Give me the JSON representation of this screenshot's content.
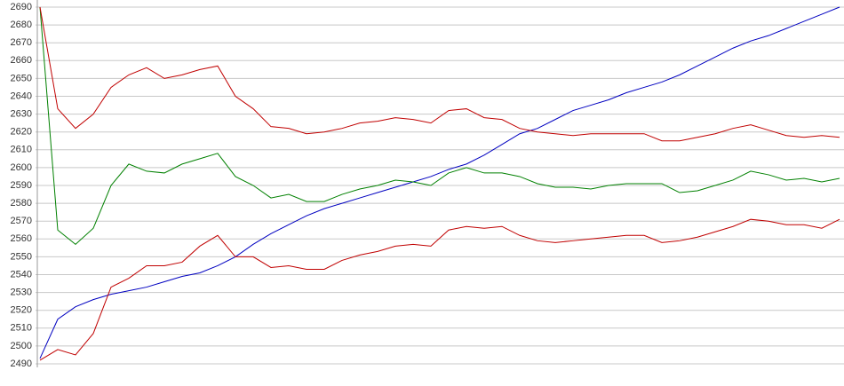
{
  "chart_data": {
    "type": "line",
    "categories": [
      null,
      null,
      null,
      null,
      null,
      null,
      null,
      null,
      null,
      null,
      null,
      null,
      null,
      null,
      null,
      null,
      null,
      null,
      null,
      null,
      null,
      null,
      null,
      null,
      null,
      null,
      null,
      null,
      null,
      null,
      null,
      null,
      null,
      null,
      null,
      null,
      null,
      null,
      null,
      null,
      null,
      null,
      null,
      null,
      null,
      null
    ],
    "ylim": [
      2490,
      2690
    ],
    "yticks": [
      2490,
      2500,
      2510,
      2520,
      2530,
      2540,
      2550,
      2560,
      2570,
      2580,
      2590,
      2600,
      2610,
      2620,
      2630,
      2640,
      2650,
      2660,
      2670,
      2680,
      2690
    ],
    "grid": true,
    "series": [
      {
        "color": "#0000c0",
        "values": [
          2493,
          2515,
          2522,
          2526,
          2529,
          2531,
          2533,
          2536,
          2539,
          2541,
          2545,
          2550,
          2557,
          2563,
          2568,
          2573,
          2577,
          2580,
          2583,
          2586,
          2589,
          2592,
          2595,
          2599,
          2602,
          2607,
          2613,
          2619,
          2622,
          2627,
          2632,
          2635,
          2638,
          2642,
          2645,
          2648,
          2652,
          2657,
          2662,
          2667,
          2671,
          2674,
          2678,
          2682,
          2686,
          2690
        ]
      },
      {
        "color": "#008000",
        "values": [
          2690,
          2565,
          2557,
          2566,
          2590,
          2602,
          2598,
          2597,
          2602,
          2605,
          2608,
          2595,
          2590,
          2583,
          2585,
          2581,
          2581,
          2585,
          2588,
          2590,
          2593,
          2592,
          2590,
          2597,
          2600,
          2597,
          2597,
          2595,
          2591,
          2589,
          2589,
          2588,
          2590,
          2591,
          2591,
          2591,
          2586,
          2587,
          2590,
          2593,
          2598,
          2596,
          2593,
          2594,
          2592,
          2594
        ]
      },
      {
        "color": "#c00000",
        "values": [
          2690,
          2633,
          2622,
          2630,
          2645,
          2652,
          2656,
          2650,
          2652,
          2655,
          2657,
          2640,
          2633,
          2623,
          2622,
          2619,
          2620,
          2622,
          2625,
          2626,
          2628,
          2627,
          2625,
          2632,
          2633,
          2628,
          2627,
          2622,
          2620,
          2619,
          2618,
          2619,
          2619,
          2619,
          2619,
          2615,
          2615,
          2617,
          2619,
          2622,
          2624,
          2621,
          2618,
          2617,
          2618,
          2617
        ]
      },
      {
        "color": "#c00000",
        "values": [
          2492,
          2498,
          2495,
          2507,
          2533,
          2538,
          2545,
          2545,
          2547,
          2556,
          2562,
          2550,
          2550,
          2544,
          2545,
          2543,
          2543,
          2548,
          2551,
          2553,
          2556,
          2557,
          2556,
          2565,
          2567,
          2566,
          2567,
          2562,
          2559,
          2558,
          2559,
          2560,
          2561,
          2562,
          2562,
          2558,
          2559,
          2561,
          2564,
          2567,
          2571,
          2570,
          2568,
          2568,
          2566,
          2571
        ]
      }
    ]
  }
}
